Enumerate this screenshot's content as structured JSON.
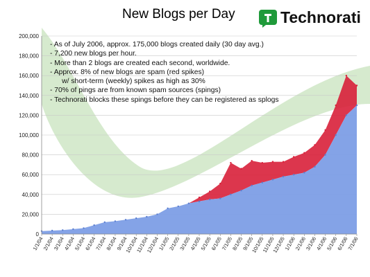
{
  "slide": {
    "title": "New Blogs per Day",
    "brand": "Technorati",
    "notes": [
      "- As of July 2006, approx. 175,000 blogs created daily (30 day avg.)",
      "- 7,200 new blogs per hour.",
      "- More than 2 blogs are created each second, worldwide.",
      "",
      "- Approx. 8% of new blogs are spam (red spikes)",
      "      w/ short-term (weekly) spikes as high as 30%",
      "- 70% of pings are from known spam sources (spings)",
      "- Technorati blocks these spings before they can be registered as splogs"
    ],
    "colors": {
      "legit_blogs": "#7d9ee6",
      "spam_spikes": "#d8203a",
      "background_swoosh": "#cfe6c6",
      "gridline": "#c8c8c8",
      "logo_green": "#1f9a3a"
    }
  },
  "chart_data": {
    "type": "area",
    "title": "New Blogs per Day",
    "xlabel": "",
    "ylabel": "",
    "ylim": [
      0,
      200000
    ],
    "y_ticks": [
      "0",
      "20,000",
      "40,000",
      "60,000",
      "80,000",
      "100,000",
      "120,000",
      "140,000",
      "160,000",
      "180,000",
      "200,000"
    ],
    "x_ticks": [
      "1/1/04",
      "2/1/04",
      "3/1/04",
      "4/1/04",
      "5/1/04",
      "6/1/04",
      "7/1/04",
      "8/1/04",
      "9/1/04",
      "10/1/04",
      "11/1/04",
      "12/1/04",
      "1/1/05",
      "2/1/05",
      "3/1/05",
      "4/1/05",
      "5/1/05",
      "6/1/05",
      "7/1/05",
      "8/1/05",
      "9/1/05",
      "10/1/05",
      "11/1/05",
      "12/1/05",
      "1/1/06",
      "2/1/06",
      "3/1/06",
      "4/1/06",
      "5/1/06",
      "6/1/06",
      "7/1/06"
    ],
    "grid": true,
    "series": [
      {
        "values": [
          3000,
          3500,
          4000,
          5000,
          6000,
          9000,
          12000,
          13000,
          14500,
          16000,
          17500,
          20000,
          26000,
          28000,
          31000,
          33000,
          35000,
          36000,
          40000,
          44000,
          49000,
          52000,
          55000,
          58000,
          60000,
          62000,
          68000,
          80000,
          100000,
          120000,
          130000
        ]
      },
      {
        "values": [
          0,
          0,
          0,
          0,
          0,
          0,
          0,
          0,
          0,
          0,
          0,
          0,
          0,
          0,
          0,
          4000,
          8000,
          15000,
          32000,
          22000,
          25000,
          20000,
          18000,
          15000,
          18000,
          20000,
          22000,
          25000,
          30000,
          40000,
          20000
        ]
      }
    ]
  }
}
